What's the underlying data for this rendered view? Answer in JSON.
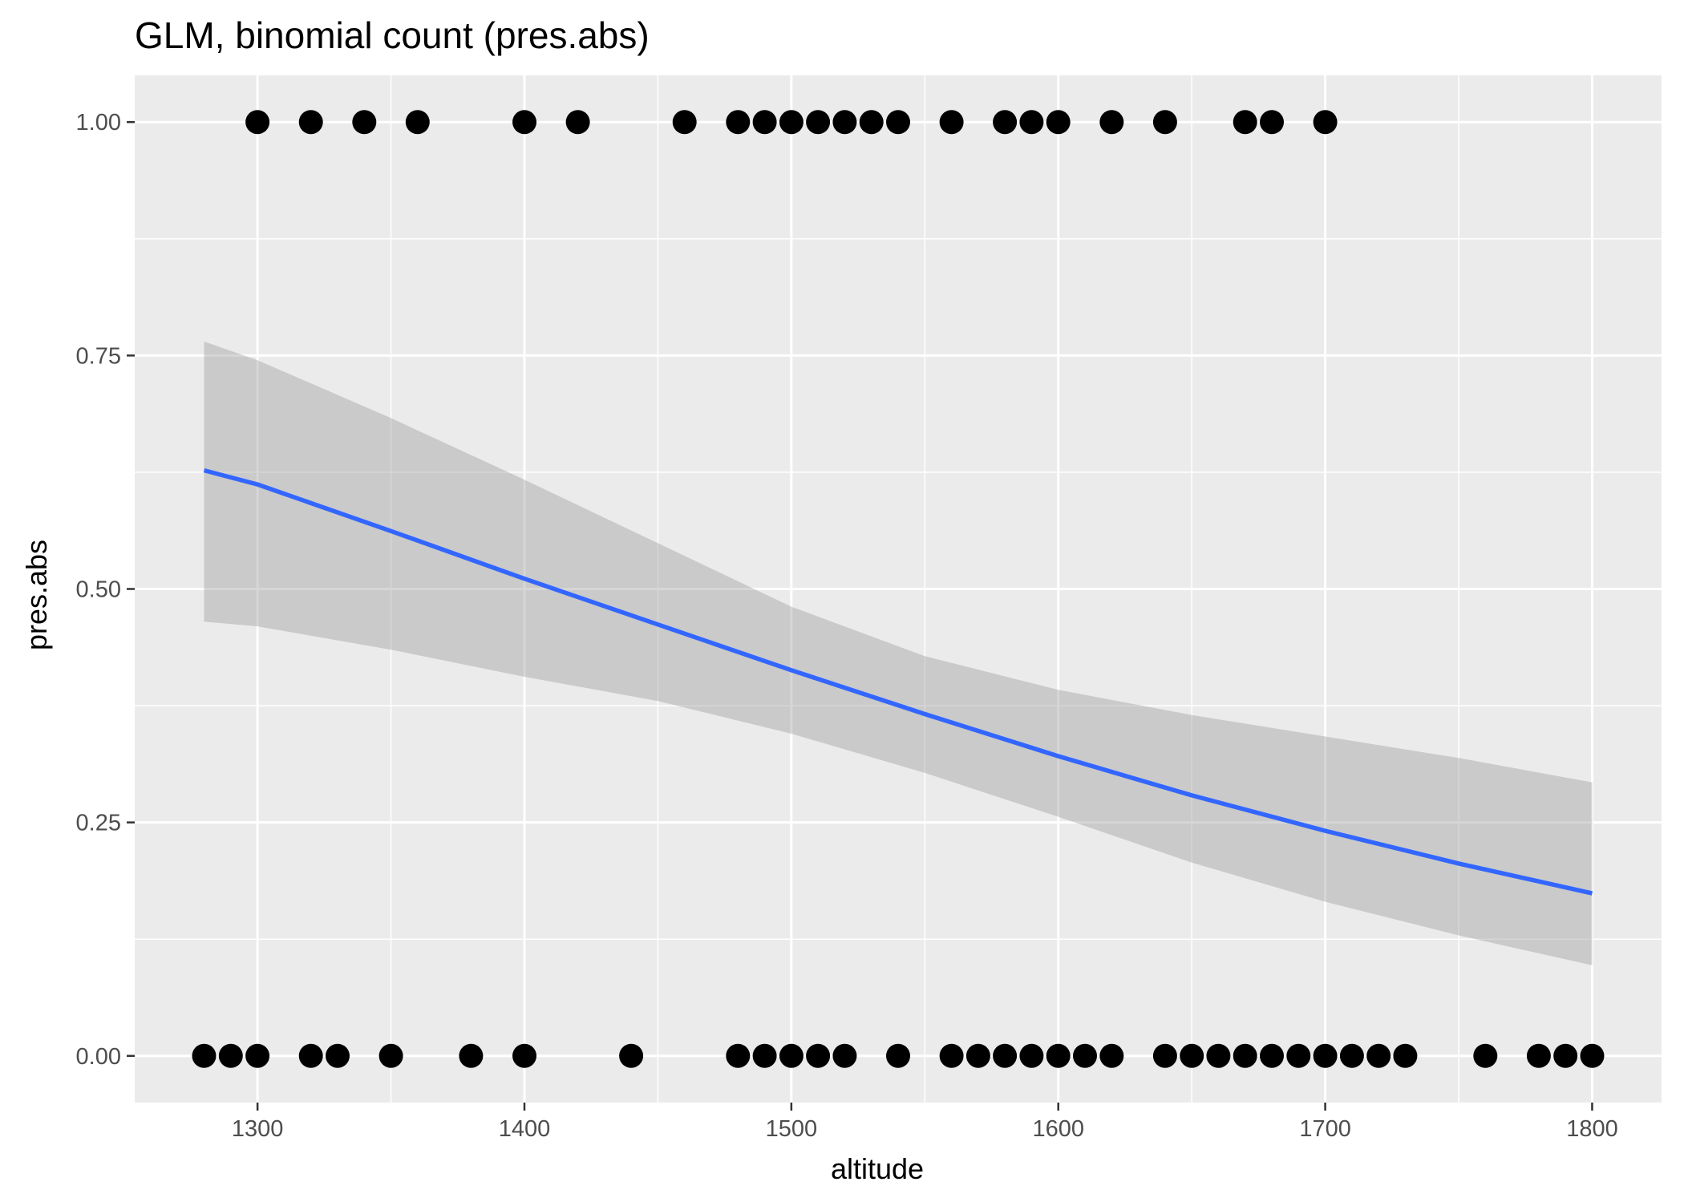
{
  "chart_data": {
    "type": "scatter",
    "title": "GLM, binomial count (pres.abs)",
    "xlabel": "altitude",
    "ylabel": "pres.abs",
    "xlim": [
      1254,
      1826
    ],
    "ylim": [
      -0.05,
      1.05
    ],
    "x_ticks": [
      1300,
      1400,
      1500,
      1600,
      1700,
      1800
    ],
    "y_ticks": [
      0.0,
      0.25,
      0.5,
      0.75,
      1.0
    ],
    "x_tick_labels": [
      "1300",
      "1400",
      "1500",
      "1600",
      "1700",
      "1800"
    ],
    "y_tick_labels": [
      "0.00",
      "0.25",
      "0.50",
      "0.75",
      "1.00"
    ],
    "x_minor_ticks": [
      1250,
      1350,
      1450,
      1550,
      1650,
      1750
    ],
    "y_minor_ticks": [
      0.125,
      0.375,
      0.625,
      0.875
    ],
    "grid": true,
    "points_presence": [
      1300,
      1320,
      1340,
      1360,
      1400,
      1420,
      1460,
      1480,
      1490,
      1500,
      1510,
      1520,
      1530,
      1540,
      1560,
      1580,
      1590,
      1600,
      1620,
      1640,
      1670,
      1680,
      1700
    ],
    "points_absence": [
      1280,
      1290,
      1300,
      1320,
      1330,
      1350,
      1380,
      1400,
      1440,
      1480,
      1490,
      1500,
      1510,
      1520,
      1540,
      1560,
      1570,
      1580,
      1590,
      1600,
      1610,
      1620,
      1640,
      1650,
      1660,
      1670,
      1680,
      1690,
      1700,
      1710,
      1720,
      1730,
      1760,
      1780,
      1790,
      1800
    ],
    "fit": {
      "x": [
        1280,
        1300,
        1350,
        1400,
        1450,
        1500,
        1550,
        1600,
        1650,
        1700,
        1750,
        1800
      ],
      "y": [
        0.627,
        0.612,
        0.562,
        0.511,
        0.462,
        0.413,
        0.366,
        0.321,
        0.279,
        0.241,
        0.206,
        0.174
      ],
      "lower": [
        0.465,
        0.46,
        0.435,
        0.406,
        0.38,
        0.345,
        0.303,
        0.256,
        0.207,
        0.165,
        0.129,
        0.097
      ],
      "upper": [
        0.765,
        0.745,
        0.683,
        0.617,
        0.549,
        0.481,
        0.428,
        0.392,
        0.365,
        0.342,
        0.319,
        0.293
      ]
    },
    "colors": {
      "panel": "#ebebeb",
      "grid": "#ffffff",
      "point": "#000000",
      "line": "#3366ff",
      "ribbon": "#999999"
    }
  }
}
